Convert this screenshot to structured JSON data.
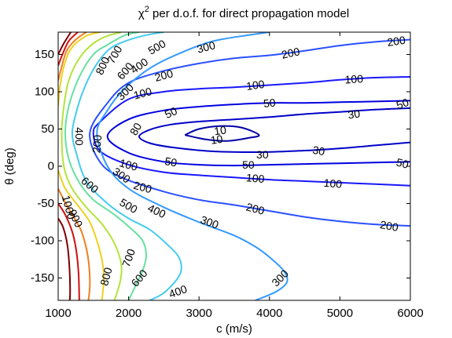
{
  "chart_data": {
    "type": "contour",
    "title_parts": {
      "chi": "χ",
      "sup": "2",
      "rest": " per d.o.f. for direct propagation model"
    },
    "xlabel": "c (m/s)",
    "ylabel": "θ (deg)",
    "xlim": [
      1000,
      6000
    ],
    "ylim": [
      -180,
      180
    ],
    "x_ticks": [
      1000,
      2000,
      3000,
      4000,
      5000,
      6000
    ],
    "y_ticks": [
      150,
      100,
      50,
      0,
      -50,
      -100,
      -150
    ],
    "grid": false,
    "legend": "none",
    "contours": [
      {
        "level": 10,
        "color": "#0000a8",
        "points": [
          [
            2800,
            42
          ],
          [
            3100,
            36
          ],
          [
            3400,
            34
          ],
          [
            3700,
            38
          ],
          [
            3850,
            42
          ],
          [
            3600,
            52
          ],
          [
            3300,
            54
          ],
          [
            3000,
            50
          ],
          [
            2800,
            42
          ]
        ]
      },
      {
        "level": 30,
        "color": "#0000c8",
        "points": [
          [
            6000,
            78
          ],
          [
            5500,
            76
          ],
          [
            5000,
            73
          ],
          [
            4500,
            70
          ],
          [
            4000,
            66
          ],
          [
            3500,
            63
          ],
          [
            3000,
            60
          ],
          [
            2600,
            56
          ],
          [
            2300,
            49
          ],
          [
            2150,
            40
          ],
          [
            2300,
            31
          ],
          [
            2650,
            25
          ],
          [
            3200,
            20
          ],
          [
            3900,
            19
          ],
          [
            4500,
            21
          ],
          [
            5000,
            24
          ],
          [
            5500,
            28
          ],
          [
            6000,
            32
          ]
        ]
      },
      {
        "level": 50,
        "color": "#0000e0",
        "points": [
          [
            6000,
            88
          ],
          [
            5500,
            87
          ],
          [
            5000,
            86
          ],
          [
            4500,
            85
          ],
          [
            4000,
            85
          ],
          [
            3500,
            83
          ],
          [
            3000,
            80
          ],
          [
            2500,
            75
          ],
          [
            2000,
            63
          ],
          [
            1700,
            40
          ],
          [
            2000,
            18
          ],
          [
            2500,
            6
          ],
          [
            3000,
            2
          ],
          [
            3500,
            1
          ],
          [
            4000,
            2
          ],
          [
            4500,
            3
          ],
          [
            5000,
            4
          ],
          [
            5500,
            5
          ],
          [
            6000,
            6
          ]
        ]
      },
      {
        "level": 100,
        "color": "#1818ff",
        "points": [
          [
            6000,
            120
          ],
          [
            5500,
            119
          ],
          [
            5000,
            116
          ],
          [
            4500,
            112
          ],
          [
            4000,
            109
          ],
          [
            3500,
            106
          ],
          [
            3000,
            104
          ],
          [
            2500,
            100
          ],
          [
            2000,
            90
          ],
          [
            1600,
            60
          ],
          [
            1500,
            45
          ],
          [
            1600,
            20
          ],
          [
            2000,
            2
          ],
          [
            2500,
            -8
          ],
          [
            3000,
            -12
          ],
          [
            3500,
            -15
          ],
          [
            4000,
            -18
          ],
          [
            4500,
            -20
          ],
          [
            5000,
            -22
          ],
          [
            5500,
            -24
          ],
          [
            6000,
            -26
          ]
        ]
      },
      {
        "level": 200,
        "color": "#2a50ff",
        "points": [
          [
            6000,
            170
          ],
          [
            5500,
            167
          ],
          [
            5000,
            162
          ],
          [
            4500,
            155
          ],
          [
            4000,
            149
          ],
          [
            3500,
            145
          ],
          [
            3000,
            138
          ],
          [
            2500,
            128
          ],
          [
            2000,
            112
          ],
          [
            1700,
            85
          ],
          [
            1450,
            45
          ],
          [
            1600,
            5
          ],
          [
            1900,
            -15
          ],
          [
            2500,
            -34
          ],
          [
            3000,
            -45
          ],
          [
            3500,
            -52
          ],
          [
            4000,
            -60
          ],
          [
            4500,
            -68
          ],
          [
            5000,
            -74
          ],
          [
            5500,
            -78
          ],
          [
            6000,
            -80
          ]
        ]
      },
      {
        "level": 300,
        "color": "#3399ff",
        "points": [
          [
            4000,
            180
          ],
          [
            3700,
            176
          ],
          [
            3300,
            170
          ],
          [
            3000,
            162
          ],
          [
            2500,
            142
          ],
          [
            2200,
            125
          ],
          [
            1900,
            100
          ],
          [
            1700,
            75
          ],
          [
            1550,
            45
          ],
          [
            1700,
            0
          ],
          [
            2000,
            -30
          ],
          [
            2500,
            -55
          ],
          [
            3000,
            -75
          ],
          [
            3500,
            -93
          ],
          [
            3800,
            -108
          ],
          [
            4000,
            -122
          ],
          [
            4200,
            -140
          ],
          [
            4250,
            -155
          ],
          [
            4100,
            -168
          ],
          [
            3800,
            -180
          ]
        ]
      },
      {
        "level": 400,
        "color": "#44ccee",
        "points": [
          [
            2500,
            180
          ],
          [
            2200,
            175
          ],
          [
            1900,
            166
          ],
          [
            1700,
            155
          ],
          [
            1500,
            130
          ],
          [
            1350,
            100
          ],
          [
            1250,
            70
          ],
          [
            1200,
            45
          ],
          [
            1250,
            20
          ],
          [
            1400,
            -20
          ],
          [
            1700,
            -50
          ],
          [
            2000,
            -70
          ],
          [
            2300,
            -85
          ],
          [
            2550,
            -105
          ],
          [
            2700,
            -120
          ],
          [
            2750,
            -135
          ],
          [
            2700,
            -150
          ],
          [
            2500,
            -170
          ],
          [
            2300,
            -180
          ]
        ]
      },
      {
        "level": 500,
        "color": "#66e0a0",
        "points": [
          [
            2150,
            180
          ],
          [
            1950,
            176
          ],
          [
            1700,
            163
          ],
          [
            1500,
            150
          ],
          [
            1300,
            120
          ],
          [
            1150,
            80
          ],
          [
            1100,
            45
          ],
          [
            1150,
            10
          ],
          [
            1300,
            -22
          ],
          [
            1500,
            -45
          ],
          [
            1800,
            -65
          ],
          [
            2050,
            -85
          ],
          [
            2200,
            -100
          ],
          [
            2250,
            -120
          ],
          [
            2200,
            -140
          ],
          [
            2100,
            -160
          ],
          [
            2000,
            -180
          ]
        ]
      },
      {
        "level": 600,
        "color": "#b4e43a",
        "points": [
          [
            1900,
            180
          ],
          [
            1700,
            175
          ],
          [
            1500,
            165
          ],
          [
            1300,
            145
          ],
          [
            1150,
            115
          ],
          [
            1080,
            80
          ],
          [
            1050,
            45
          ],
          [
            1080,
            0
          ],
          [
            1200,
            -30
          ],
          [
            1400,
            -55
          ],
          [
            1600,
            -75
          ],
          [
            1750,
            -95
          ],
          [
            1850,
            -115
          ],
          [
            1900,
            -135
          ],
          [
            1880,
            -155
          ],
          [
            1800,
            -180
          ]
        ]
      },
      {
        "level": 700,
        "color": "#f0d020",
        "points": [
          [
            1600,
            180
          ],
          [
            1400,
            175
          ],
          [
            1200,
            160
          ],
          [
            1100,
            140
          ],
          [
            1030,
            110
          ],
          [
            1000,
            80
          ]
        ],
        "points2": [
          [
            1000,
            -5
          ],
          [
            1100,
            -30
          ],
          [
            1300,
            -55
          ],
          [
            1450,
            -75
          ],
          [
            1550,
            -100
          ],
          [
            1620,
            -125
          ],
          [
            1650,
            -150
          ],
          [
            1620,
            -180
          ]
        ]
      },
      {
        "level": 800,
        "color": "#f08020",
        "points": [
          [
            1400,
            180
          ],
          [
            1250,
            170
          ],
          [
            1120,
            155
          ],
          [
            1040,
            130
          ],
          [
            1000,
            115
          ]
        ],
        "points2": [
          [
            1000,
            -30
          ],
          [
            1080,
            -45
          ],
          [
            1200,
            -65
          ],
          [
            1320,
            -85
          ],
          [
            1400,
            -110
          ],
          [
            1440,
            -135
          ],
          [
            1450,
            -160
          ],
          [
            1430,
            -180
          ]
        ]
      },
      {
        "level": 900,
        "color": "#d01010",
        "points": [
          [
            1280,
            180
          ],
          [
            1150,
            168
          ],
          [
            1060,
            150
          ],
          [
            1000,
            135
          ]
        ],
        "points2": [
          [
            1000,
            -50
          ],
          [
            1100,
            -65
          ],
          [
            1200,
            -88
          ],
          [
            1260,
            -115
          ],
          [
            1290,
            -145
          ],
          [
            1300,
            -180
          ]
        ]
      },
      {
        "level": 1000,
        "color": "#800000",
        "points": [
          [
            1180,
            180
          ],
          [
            1080,
            165
          ],
          [
            1000,
            150
          ]
        ],
        "points2": [
          [
            1000,
            -70
          ],
          [
            1070,
            -82
          ],
          [
            1130,
            -105
          ],
          [
            1160,
            -135
          ],
          [
            1170,
            -165
          ],
          [
            1165,
            -180
          ]
        ]
      }
    ],
    "contour_labels": [
      {
        "text": "10",
        "x": 3300,
        "y": 48,
        "angle": -8
      },
      {
        "text": "10",
        "x": 3250,
        "y": 36,
        "angle": -8
      },
      {
        "text": "30",
        "x": 5200,
        "y": 70,
        "angle": -8
      },
      {
        "text": "30",
        "x": 4700,
        "y": 21,
        "angle": 10
      },
      {
        "text": "30",
        "x": 3900,
        "y": 16,
        "angle": 0
      },
      {
        "text": "50",
        "x": 4000,
        "y": 85,
        "angle": -6
      },
      {
        "text": "50",
        "x": 5900,
        "y": 84,
        "angle": -20
      },
      {
        "text": "50",
        "x": 2600,
        "y": 72,
        "angle": -25
      },
      {
        "text": "50",
        "x": 2600,
        "y": 6,
        "angle": 10
      },
      {
        "text": "50",
        "x": 3700,
        "y": 2,
        "angle": 0
      },
      {
        "text": "50",
        "x": 5900,
        "y": 4,
        "angle": 15
      },
      {
        "text": "80",
        "x": 2100,
        "y": 50,
        "angle": -60
      },
      {
        "text": "100",
        "x": 3800,
        "y": 109,
        "angle": -8
      },
      {
        "text": "100",
        "x": 5200,
        "y": 117,
        "angle": -3
      },
      {
        "text": "100",
        "x": 2200,
        "y": 98,
        "angle": -15
      },
      {
        "text": "100",
        "x": 2000,
        "y": 2,
        "angle": 15
      },
      {
        "text": "100",
        "x": 3800,
        "y": -16,
        "angle": 5
      },
      {
        "text": "100",
        "x": 4900,
        "y": -23,
        "angle": 5
      },
      {
        "text": "200",
        "x": 4300,
        "y": 152,
        "angle": -12
      },
      {
        "text": "200",
        "x": 5800,
        "y": 168,
        "angle": -8
      },
      {
        "text": "200",
        "x": 2500,
        "y": 122,
        "angle": -15
      },
      {
        "text": "200",
        "x": 1550,
        "y": 30,
        "angle": -85
      },
      {
        "text": "200",
        "x": 2200,
        "y": -28,
        "angle": 15
      },
      {
        "text": "200",
        "x": 3800,
        "y": -57,
        "angle": 15
      },
      {
        "text": "200",
        "x": 5700,
        "y": -80,
        "angle": 10
      },
      {
        "text": "300",
        "x": 3100,
        "y": 160,
        "angle": -15
      },
      {
        "text": "300",
        "x": 1950,
        "y": 100,
        "angle": -45
      },
      {
        "text": "300",
        "x": 1900,
        "y": -12,
        "angle": 35
      },
      {
        "text": "300",
        "x": 3150,
        "y": -75,
        "angle": 20
      },
      {
        "text": "300",
        "x": 4150,
        "y": -150,
        "angle": -45
      },
      {
        "text": "400",
        "x": 2150,
        "y": 135,
        "angle": -35
      },
      {
        "text": "400",
        "x": 1300,
        "y": 40,
        "angle": 90
      },
      {
        "text": "400",
        "x": 2400,
        "y": -60,
        "angle": 25
      },
      {
        "text": "400",
        "x": 2700,
        "y": -168,
        "angle": -20
      },
      {
        "text": "500",
        "x": 2400,
        "y": 160,
        "angle": -30
      },
      {
        "text": "500",
        "x": 2000,
        "y": -53,
        "angle": 30
      },
      {
        "text": "600",
        "x": 1950,
        "y": 128,
        "angle": -50
      },
      {
        "text": "600",
        "x": 1450,
        "y": -25,
        "angle": 40
      },
      {
        "text": "600",
        "x": 2150,
        "y": -150,
        "angle": -50
      },
      {
        "text": "700",
        "x": 1800,
        "y": 150,
        "angle": -60
      },
      {
        "text": "700",
        "x": 2000,
        "y": -123,
        "angle": -70
      },
      {
        "text": "800",
        "x": 1630,
        "y": 135,
        "angle": -65
      },
      {
        "text": "800",
        "x": 1680,
        "y": -148,
        "angle": -75
      },
      {
        "text": "900",
        "x": 1250,
        "y": -70,
        "angle": 65
      },
      {
        "text": "1000",
        "x": 1150,
        "y": -55,
        "angle": 75
      }
    ]
  }
}
